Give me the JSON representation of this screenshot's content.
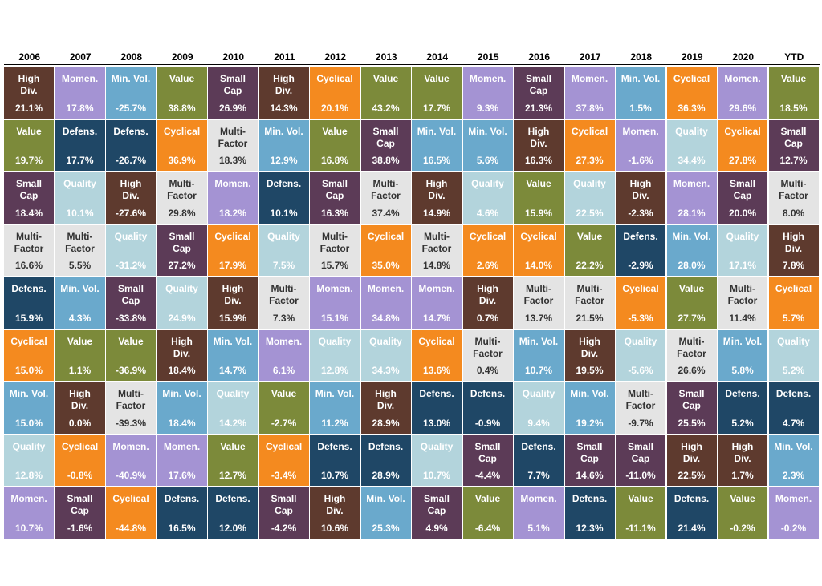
{
  "chart_data": {
    "type": "table",
    "years": [
      "2006",
      "2007",
      "2008",
      "2009",
      "2010",
      "2011",
      "2012",
      "2013",
      "2014",
      "2015",
      "2016",
      "2017",
      "2018",
      "2019",
      "2020",
      "YTD"
    ],
    "factors": {
      "High Div.": {
        "label": "High\nDiv.",
        "color": "#5e3a2e",
        "text": "#ffffff"
      },
      "Momen.": {
        "label": "Momen.",
        "color": "#a493d3",
        "text": "#ffffff"
      },
      "Min. Vol.": {
        "label": "Min. Vol.",
        "color": "#6aa9cc",
        "text": "#ffffff"
      },
      "Value": {
        "label": "Value",
        "color": "#7c8a3a",
        "text": "#ffffff"
      },
      "Small Cap": {
        "label": "Small\nCap",
        "color": "#5c3b57",
        "text": "#ffffff"
      },
      "Cyclical": {
        "label": "Cyclical",
        "color": "#f48a1f",
        "text": "#ffffff"
      },
      "Defens.": {
        "label": "Defens.",
        "color": "#1f4766",
        "text": "#ffffff"
      },
      "Multi-Factor": {
        "label": "Multi-\nFactor",
        "color": "#e4e4e4",
        "text": "#333333"
      },
      "Quality": {
        "label": "Quality",
        "color": "#b3d4dc",
        "text": "#ffffff"
      }
    },
    "columns": [
      [
        [
          "High Div.",
          "21.1%"
        ],
        [
          "Value",
          "19.7%"
        ],
        [
          "Small Cap",
          "18.4%"
        ],
        [
          "Multi-Factor",
          "16.6%"
        ],
        [
          "Defens.",
          "15.9%"
        ],
        [
          "Cyclical",
          "15.0%"
        ],
        [
          "Min. Vol.",
          "15.0%"
        ],
        [
          "Quality",
          "12.8%"
        ],
        [
          "Momen.",
          "10.7%"
        ]
      ],
      [
        [
          "Momen.",
          "17.8%"
        ],
        [
          "Defens.",
          "17.7%"
        ],
        [
          "Quality",
          "10.1%"
        ],
        [
          "Multi-Factor",
          "5.5%"
        ],
        [
          "Min. Vol.",
          "4.3%"
        ],
        [
          "Value",
          "1.1%"
        ],
        [
          "High Div.",
          "0.0%"
        ],
        [
          "Cyclical",
          "-0.8%"
        ],
        [
          "Small Cap",
          "-1.6%"
        ]
      ],
      [
        [
          "Min. Vol.",
          "-25.7%"
        ],
        [
          "Defens.",
          "-26.7%"
        ],
        [
          "High Div.",
          "-27.6%"
        ],
        [
          "Quality",
          "-31.2%"
        ],
        [
          "Small Cap",
          "-33.8%"
        ],
        [
          "Value",
          "-36.9%"
        ],
        [
          "Multi-Factor",
          "-39.3%"
        ],
        [
          "Momen.",
          "-40.9%"
        ],
        [
          "Cyclical",
          "-44.8%"
        ]
      ],
      [
        [
          "Value",
          "38.8%"
        ],
        [
          "Cyclical",
          "36.9%"
        ],
        [
          "Multi-Factor",
          "29.8%"
        ],
        [
          "Small Cap",
          "27.2%"
        ],
        [
          "Quality",
          "24.9%"
        ],
        [
          "High Div.",
          "18.4%"
        ],
        [
          "Min. Vol.",
          "18.4%"
        ],
        [
          "Momen.",
          "17.6%"
        ],
        [
          "Defens.",
          "16.5%"
        ]
      ],
      [
        [
          "Small Cap",
          "26.9%"
        ],
        [
          "Multi-Factor",
          "18.3%"
        ],
        [
          "Momen.",
          "18.2%"
        ],
        [
          "Cyclical",
          "17.9%"
        ],
        [
          "High Div.",
          "15.9%"
        ],
        [
          "Min. Vol.",
          "14.7%"
        ],
        [
          "Quality",
          "14.2%"
        ],
        [
          "Value",
          "12.7%"
        ],
        [
          "Defens.",
          "12.0%"
        ]
      ],
      [
        [
          "High Div.",
          "14.3%"
        ],
        [
          "Min. Vol.",
          "12.9%"
        ],
        [
          "Defens.",
          "10.1%"
        ],
        [
          "Quality",
          "7.5%"
        ],
        [
          "Multi-Factor",
          "7.3%"
        ],
        [
          "Momen.",
          "6.1%"
        ],
        [
          "Value",
          "-2.7%"
        ],
        [
          "Cyclical",
          "-3.4%"
        ],
        [
          "Small Cap",
          "-4.2%"
        ]
      ],
      [
        [
          "Cyclical",
          "20.1%"
        ],
        [
          "Value",
          "16.8%"
        ],
        [
          "Small Cap",
          "16.3%"
        ],
        [
          "Multi-Factor",
          "15.7%"
        ],
        [
          "Momen.",
          "15.1%"
        ],
        [
          "Quality",
          "12.8%"
        ],
        [
          "Min. Vol.",
          "11.2%"
        ],
        [
          "Defens.",
          "10.7%"
        ],
        [
          "High Div.",
          "10.6%"
        ]
      ],
      [
        [
          "Value",
          "43.2%"
        ],
        [
          "Small Cap",
          "38.8%"
        ],
        [
          "Multi-Factor",
          "37.4%"
        ],
        [
          "Cyclical",
          "35.0%"
        ],
        [
          "Momen.",
          "34.8%"
        ],
        [
          "Quality",
          "34.3%"
        ],
        [
          "High Div.",
          "28.9%"
        ],
        [
          "Defens.",
          "28.9%"
        ],
        [
          "Min. Vol.",
          "25.3%"
        ]
      ],
      [
        [
          "Value",
          "17.7%"
        ],
        [
          "Min. Vol.",
          "16.5%"
        ],
        [
          "High Div.",
          "14.9%"
        ],
        [
          "Multi-Factor",
          "14.8%"
        ],
        [
          "Momen.",
          "14.7%"
        ],
        [
          "Cyclical",
          "13.6%"
        ],
        [
          "Defens.",
          "13.0%"
        ],
        [
          "Quality",
          "10.7%"
        ],
        [
          "Small Cap",
          "4.9%"
        ]
      ],
      [
        [
          "Momen.",
          "9.3%"
        ],
        [
          "Min. Vol.",
          "5.6%"
        ],
        [
          "Quality",
          "4.6%"
        ],
        [
          "Cyclical",
          "2.6%"
        ],
        [
          "High Div.",
          "0.7%"
        ],
        [
          "Multi-Factor",
          "0.4%"
        ],
        [
          "Defens.",
          "-0.9%"
        ],
        [
          "Small Cap",
          "-4.4%"
        ],
        [
          "Value",
          "-6.4%"
        ]
      ],
      [
        [
          "Small Cap",
          "21.3%"
        ],
        [
          "High Div.",
          "16.3%"
        ],
        [
          "Value",
          "15.9%"
        ],
        [
          "Cyclical",
          "14.0%"
        ],
        [
          "Multi-Factor",
          "13.7%"
        ],
        [
          "Min. Vol.",
          "10.7%"
        ],
        [
          "Quality",
          "9.4%"
        ],
        [
          "Defens.",
          "7.7%"
        ],
        [
          "Momen.",
          "5.1%"
        ]
      ],
      [
        [
          "Momen.",
          "37.8%"
        ],
        [
          "Cyclical",
          "27.3%"
        ],
        [
          "Quality",
          "22.5%"
        ],
        [
          "Value",
          "22.2%"
        ],
        [
          "Multi-Factor",
          "21.5%"
        ],
        [
          "High Div.",
          "19.5%"
        ],
        [
          "Min. Vol.",
          "19.2%"
        ],
        [
          "Small Cap",
          "14.6%"
        ],
        [
          "Defens.",
          "12.3%"
        ]
      ],
      [
        [
          "Min. Vol.",
          "1.5%"
        ],
        [
          "Momen.",
          "-1.6%"
        ],
        [
          "High Div.",
          "-2.3%"
        ],
        [
          "Defens.",
          "-2.9%"
        ],
        [
          "Cyclical",
          "-5.3%"
        ],
        [
          "Quality",
          "-5.6%"
        ],
        [
          "Multi-Factor",
          "-9.7%"
        ],
        [
          "Small Cap",
          "-11.0%"
        ],
        [
          "Value",
          "-11.1%"
        ]
      ],
      [
        [
          "Cyclical",
          "36.3%"
        ],
        [
          "Quality",
          "34.4%"
        ],
        [
          "Momen.",
          "28.1%"
        ],
        [
          "Min. Vol.",
          "28.0%"
        ],
        [
          "Value",
          "27.7%"
        ],
        [
          "Multi-Factor",
          "26.6%"
        ],
        [
          "Small Cap",
          "25.5%"
        ],
        [
          "High Div.",
          "22.5%"
        ],
        [
          "Defens.",
          "21.4%"
        ]
      ],
      [
        [
          "Momen.",
          "29.6%"
        ],
        [
          "Cyclical",
          "27.8%"
        ],
        [
          "Small Cap",
          "20.0%"
        ],
        [
          "Quality",
          "17.1%"
        ],
        [
          "Multi-Factor",
          "11.4%"
        ],
        [
          "Min. Vol.",
          "5.8%"
        ],
        [
          "Defens.",
          "5.2%"
        ],
        [
          "High Div.",
          "1.7%"
        ],
        [
          "Value",
          "-0.2%"
        ]
      ],
      [
        [
          "Value",
          "18.5%"
        ],
        [
          "Small Cap",
          "12.7%"
        ],
        [
          "Multi-Factor",
          "8.0%"
        ],
        [
          "High Div.",
          "7.8%"
        ],
        [
          "Cyclical",
          "5.7%"
        ],
        [
          "Quality",
          "5.2%"
        ],
        [
          "Defens.",
          "4.7%"
        ],
        [
          "Min. Vol.",
          "2.3%"
        ],
        [
          "Momen.",
          "-0.2%"
        ]
      ]
    ]
  }
}
